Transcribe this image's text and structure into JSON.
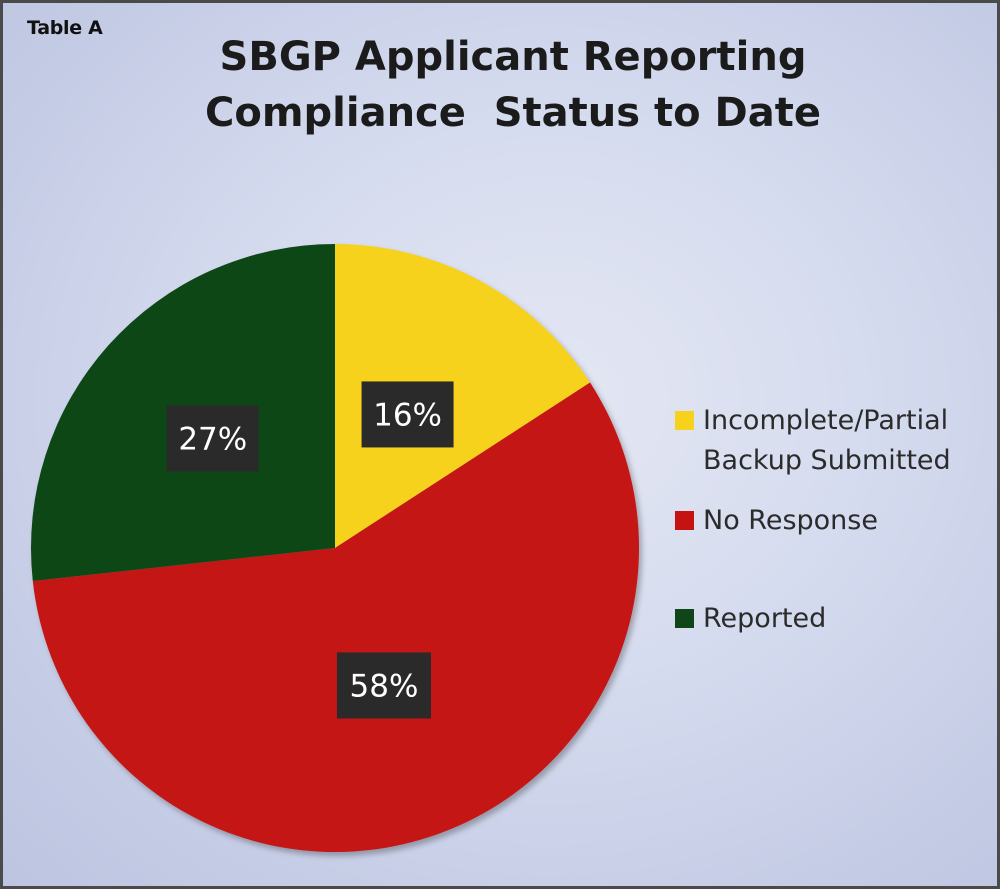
{
  "table_label": "Table A",
  "chart_data": {
    "type": "pie",
    "title": [
      "SBGP Applicant Reporting",
      "Compliance  Status to Date"
    ],
    "slices": [
      {
        "name": "Incomplete/Partial Backup Submitted",
        "value": 16,
        "label": "16%",
        "color": "#f6d21c"
      },
      {
        "name": "No Response",
        "value": 58,
        "label": "58%",
        "color": "#c51313"
      },
      {
        "name": "Reported",
        "value": 27,
        "label": "27%",
        "color": "#0f4617"
      }
    ],
    "start_angle_deg": 0,
    "direction": "clockwise",
    "legend": {
      "placement": "right",
      "entries": [
        {
          "lines": [
            "Incomplete/Partial",
            "Backup Submitted"
          ],
          "color": "#f6d21c"
        },
        {
          "lines": [
            "No Response"
          ],
          "color": "#c51313"
        },
        {
          "lines": [
            "Reported"
          ],
          "color": "#0f4617"
        }
      ]
    }
  }
}
